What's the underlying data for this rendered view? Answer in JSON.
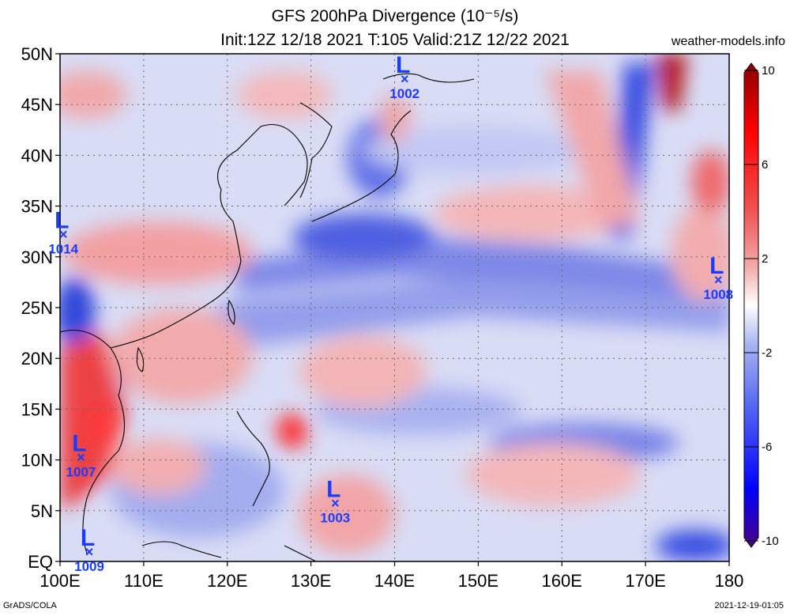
{
  "header": {
    "title": "GFS 200hPa Divergence (10⁻⁵/s)",
    "subtitle": "Init:12Z 12/18 2021 T:105 Valid:21Z 12/22 2021",
    "site": "weather-models.info"
  },
  "map": {
    "lat_labels": [
      "50N",
      "45N",
      "40N",
      "35N",
      "30N",
      "25N",
      "20N",
      "15N",
      "10N",
      "5N",
      "EQ"
    ],
    "lon_labels": [
      "100E",
      "110E",
      "120E",
      "130E",
      "140E",
      "150E",
      "160E",
      "170E",
      "180"
    ],
    "lows": [
      {
        "label": "L",
        "marker": "×",
        "pressure": "1002",
        "lon": 141.2,
        "lat": 47.6
      },
      {
        "label": "L",
        "marker": "×",
        "pressure": "1014",
        "lon": 100.4,
        "lat": 32.3
      },
      {
        "label": "L",
        "marker": "×",
        "pressure": "1008",
        "lon": 178.7,
        "lat": 27.8
      },
      {
        "label": "L",
        "marker": "×",
        "pressure": "1007",
        "lon": 102.5,
        "lat": 10.3
      },
      {
        "label": "L",
        "marker": "×",
        "pressure": "1003",
        "lon": 132.9,
        "lat": 5.8
      },
      {
        "label": "L",
        "marker": "×",
        "pressure": "1009",
        "lon": 103.5,
        "lat": 1.0
      }
    ]
  },
  "colorbar": {
    "ticks": [
      "10",
      "6",
      "2",
      "-2",
      "-6",
      "-10"
    ],
    "colors": [
      "#4b0082",
      "#0000ff",
      "#5a6cf0",
      "#a9b6f2",
      "#ffffff",
      "#f2aaaa",
      "#f05050",
      "#ff0000",
      "#8b0000"
    ]
  },
  "footer": {
    "left": "GrADS/COLA",
    "right": "2021-12-19-01:05"
  }
}
